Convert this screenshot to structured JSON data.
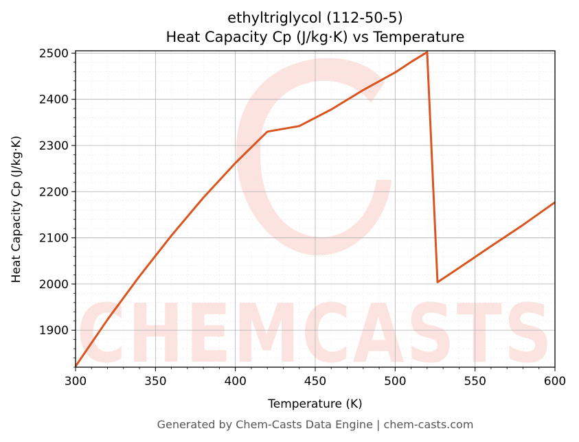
{
  "chart_data": {
    "type": "line",
    "title": "ethyltriglycol (112-50-5)",
    "subtitle": "Heat Capacity Cp (J/kg·K) vs Temperature",
    "xlabel": "Temperature (K)",
    "ylabel": "Heat Capacity Cp (J/kg·K)",
    "xlim": [
      300,
      600
    ],
    "ylim": [
      1820,
      2505
    ],
    "xticks": [
      300,
      350,
      400,
      450,
      500,
      550,
      600
    ],
    "yticks": [
      1900,
      2000,
      2100,
      2200,
      2300,
      2400,
      2500
    ],
    "grid": true,
    "legend": "none",
    "series": [
      {
        "color": "#d9541e",
        "x": [
          300,
          320,
          340,
          360,
          380,
          400,
          420,
          440,
          460,
          480,
          500,
          510,
          520,
          526.5,
          540,
          560,
          580,
          600
        ],
        "y": [
          1822,
          1923,
          2017,
          2105,
          2187,
          2262,
          2330,
          2342,
          2378,
          2420,
          2458,
          2481,
          2502,
          2004,
          2035,
          2082,
          2128,
          2177
        ]
      }
    ]
  },
  "footer": "Generated by Chem-Casts Data Engine | chem-casts.com",
  "watermark": "CHEMCASTS",
  "colors": {
    "line": "#d9541e",
    "watermark": "#fde3df"
  }
}
